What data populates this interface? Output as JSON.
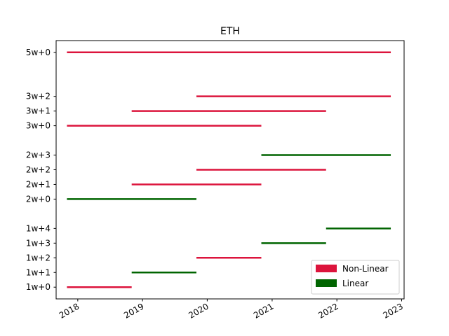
{
  "chart_data": {
    "type": "timeline",
    "title": "ETH",
    "xlabel": "",
    "ylabel": "",
    "x_ticks": [
      "2018",
      "2019",
      "2020",
      "2021",
      "2022",
      "2023"
    ],
    "y_categories": [
      "1w+0",
      "1w+1",
      "1w+2",
      "1w+3",
      "1w+4",
      "",
      "2w+0",
      "2w+1",
      "2w+2",
      "2w+3",
      "",
      "3w+0",
      "3w+1",
      "3w+2",
      "",
      "",
      "5w+0"
    ],
    "xlim": [
      "2017-09-01",
      "2023-01-15"
    ],
    "series": [
      {
        "name": "Non-Linear",
        "color": "#dc143c"
      },
      {
        "name": "Linear",
        "color": "#006400"
      }
    ],
    "segments": [
      {
        "label": "1w+0",
        "start": "2017-11-01",
        "end": "2018-11-01",
        "series": "Non-Linear"
      },
      {
        "label": "1w+1",
        "start": "2018-11-01",
        "end": "2019-11-01",
        "series": "Linear"
      },
      {
        "label": "1w+2",
        "start": "2019-11-01",
        "end": "2020-11-01",
        "series": "Non-Linear"
      },
      {
        "label": "1w+3",
        "start": "2020-11-01",
        "end": "2021-11-01",
        "series": "Linear"
      },
      {
        "label": "1w+4",
        "start": "2021-11-01",
        "end": "2022-11-01",
        "series": "Linear"
      },
      {
        "label": "2w+0",
        "start": "2017-11-01",
        "end": "2019-11-01",
        "series": "Linear"
      },
      {
        "label": "2w+1",
        "start": "2018-11-01",
        "end": "2020-11-01",
        "series": "Non-Linear"
      },
      {
        "label": "2w+2",
        "start": "2019-11-01",
        "end": "2021-11-01",
        "series": "Non-Linear"
      },
      {
        "label": "2w+3",
        "start": "2020-11-01",
        "end": "2022-11-01",
        "series": "Linear"
      },
      {
        "label": "3w+0",
        "start": "2017-11-01",
        "end": "2020-11-01",
        "series": "Non-Linear"
      },
      {
        "label": "3w+1",
        "start": "2018-11-01",
        "end": "2021-11-01",
        "series": "Non-Linear"
      },
      {
        "label": "3w+2",
        "start": "2019-11-01",
        "end": "2022-11-01",
        "series": "Non-Linear"
      },
      {
        "label": "5w+0",
        "start": "2017-11-01",
        "end": "2022-11-01",
        "series": "Non-Linear"
      }
    ],
    "grid": false,
    "legend": {
      "location": "lower-right",
      "entries": [
        "Non-Linear",
        "Linear"
      ]
    }
  }
}
